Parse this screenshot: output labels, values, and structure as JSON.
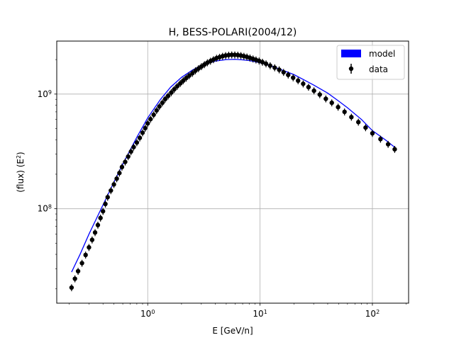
{
  "chart_data": {
    "type": "scatter",
    "title": "H, BESS-POLARI(2004/12)",
    "xlabel": "E [GeV/n]",
    "ylabel": "(flux)  (E",
    "ylabel_sup": "2",
    "ylabel_close": ")",
    "x_scale": "log",
    "y_scale": "log",
    "xlim": [
      0.155,
      210
    ],
    "ylim": [
      15000000,
      2900000000
    ],
    "grid": true,
    "legend_position": "top-right",
    "x_ticks": [
      {
        "base": "10",
        "exp": "0",
        "value": 1
      },
      {
        "base": "10",
        "exp": "1",
        "value": 10
      },
      {
        "base": "10",
        "exp": "2",
        "value": 100
      }
    ],
    "y_ticks": [
      {
        "base": "10",
        "exp": "8",
        "value": 100000000
      },
      {
        "base": "10",
        "exp": "9",
        "value": 1000000000
      }
    ],
    "series": [
      {
        "name": "model",
        "kind": "line",
        "color": "#0000ff",
        "x": [
          0.21,
          0.25,
          0.3,
          0.4,
          0.5,
          0.6,
          0.8,
          1.0,
          1.3,
          1.6,
          2.0,
          2.5,
          3.0,
          4.0,
          5.0,
          6.0,
          7.0,
          8.0,
          10,
          13,
          16,
          20,
          25,
          30,
          40,
          50,
          60,
          80,
          100,
          130,
          160
        ],
        "y": [
          28000000,
          40000000,
          60000000,
          108000000,
          170000000,
          245000000,
          420000000,
          620000000,
          900000000,
          1150000000,
          1400000000,
          1620000000,
          1780000000,
          1940000000,
          2000000000,
          2010000000,
          1990000000,
          1960000000,
          1880000000,
          1740000000,
          1610000000,
          1480000000,
          1320000000,
          1200000000,
          1020000000,
          870000000,
          760000000,
          600000000,
          480000000,
          400000000,
          340000000
        ]
      },
      {
        "name": "data",
        "kind": "errorbar-points",
        "color": "#000000",
        "x": [
          0.21,
          0.225,
          0.24,
          0.26,
          0.28,
          0.3,
          0.32,
          0.34,
          0.36,
          0.38,
          0.4,
          0.42,
          0.44,
          0.47,
          0.5,
          0.53,
          0.56,
          0.59,
          0.63,
          0.67,
          0.71,
          0.75,
          0.8,
          0.85,
          0.9,
          0.95,
          1.0,
          1.06,
          1.13,
          1.2,
          1.27,
          1.35,
          1.43,
          1.52,
          1.62,
          1.72,
          1.83,
          1.95,
          2.07,
          2.2,
          2.34,
          2.5,
          2.66,
          2.83,
          3.01,
          3.2,
          3.4,
          3.62,
          3.85,
          4.1,
          4.36,
          4.64,
          4.94,
          5.26,
          5.6,
          5.96,
          6.34,
          6.75,
          7.18,
          7.64,
          8.13,
          8.65,
          9.2,
          9.8,
          10.5,
          11.3,
          12.3,
          13.5,
          14.8,
          16.2,
          17.8,
          19.7,
          21.8,
          24.2,
          27.0,
          30.2,
          34.0,
          38.5,
          43.5,
          49.5,
          56.5,
          65,
          75,
          87,
          100,
          118,
          138,
          158
        ],
        "y": [
          20500000,
          24500000,
          28500000,
          33500000,
          39500000,
          46000000,
          53500000,
          62000000,
          72000000,
          83000000,
          95000000,
          110000000,
          126000000,
          144000000,
          163000000,
          183000000,
          205000000,
          231000000,
          256000000,
          285000000,
          315000000,
          345000000,
          378000000,
          415000000,
          460000000,
          505000000,
          555000000,
          605000000,
          660000000,
          720000000,
          780000000,
          840000000,
          905000000,
          965000000,
          1030000000,
          1100000000,
          1170000000,
          1240000000,
          1310000000,
          1380000000,
          1450000000,
          1520000000,
          1600000000,
          1670000000,
          1740000000,
          1810000000,
          1880000000,
          1940000000,
          2000000000,
          2060000000,
          2100000000,
          2140000000,
          2170000000,
          2190000000,
          2200000000,
          2200000000,
          2190000000,
          2170000000,
          2140000000,
          2110000000,
          2070000000,
          2030000000,
          1990000000,
          1950000000,
          1900000000,
          1840000000,
          1770000000,
          1700000000,
          1630000000,
          1550000000,
          1470000000,
          1390000000,
          1310000000,
          1230000000,
          1150000000,
          1070000000,
          990000000,
          910000000,
          840000000,
          770000000,
          700000000,
          630000000,
          570000000,
          510000000,
          455000000,
          405000000,
          365000000,
          330000000
        ],
        "yerr_rel": 0.07
      }
    ]
  }
}
